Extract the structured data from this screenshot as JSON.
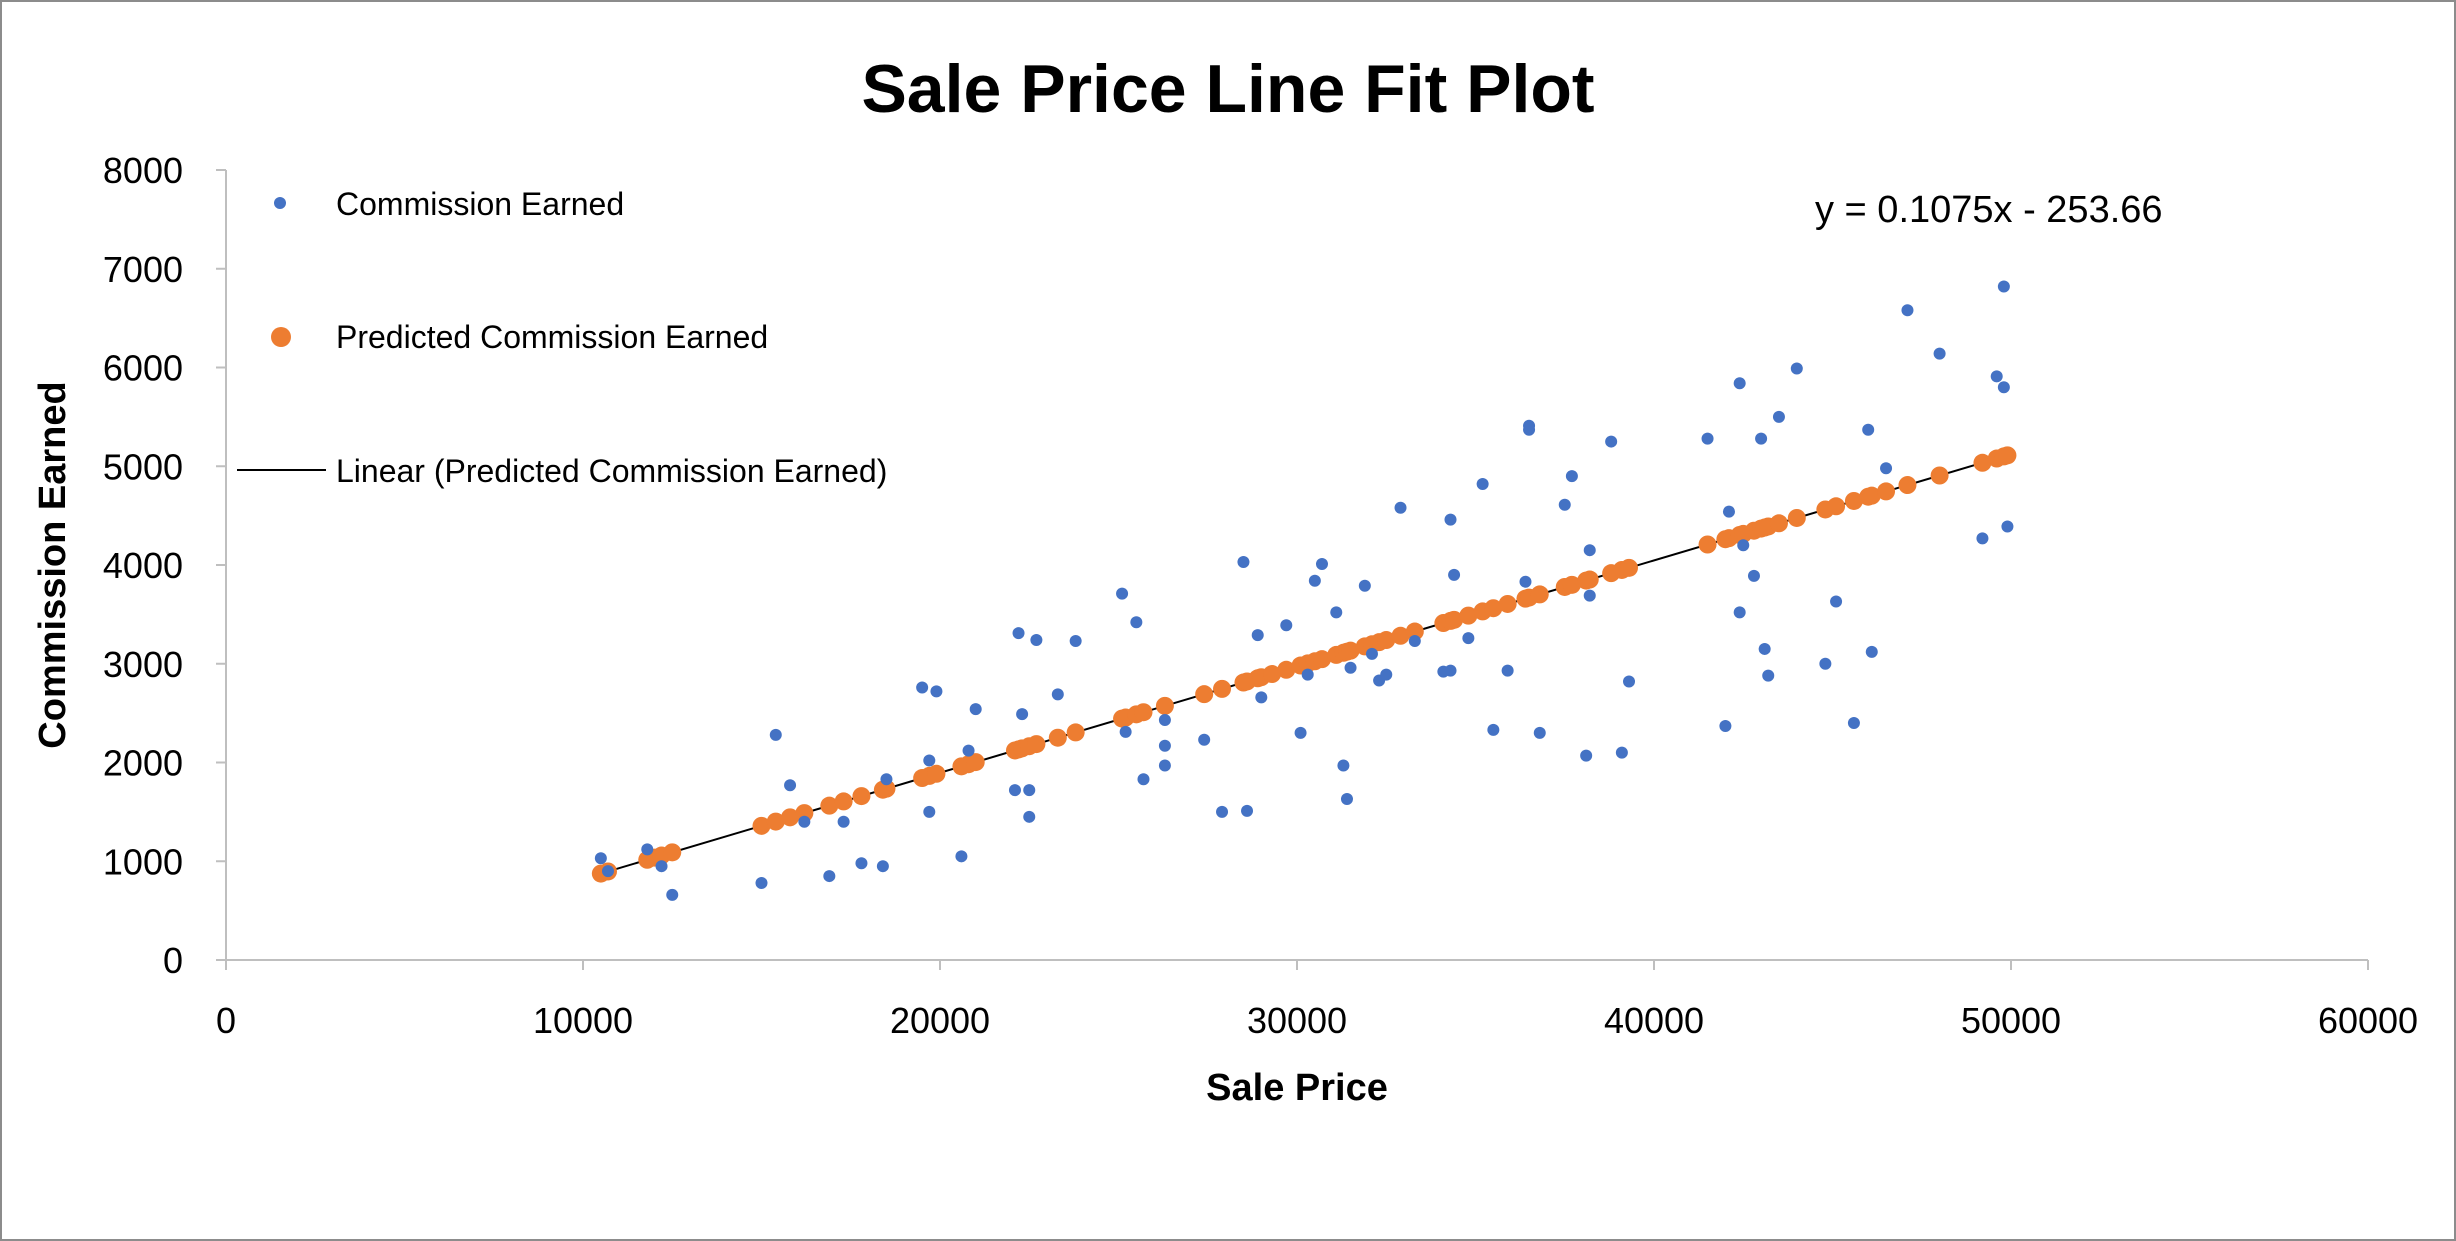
{
  "chart_data": {
    "type": "scatter",
    "title": "Sale Price Line Fit  Plot",
    "xlabel": "Sale Price",
    "ylabel": "Commission Earned",
    "xlim": [
      0,
      60000
    ],
    "ylim": [
      0,
      8000
    ],
    "x_ticks": [
      0,
      10000,
      20000,
      30000,
      40000,
      50000,
      60000
    ],
    "y_ticks": [
      0,
      1000,
      2000,
      3000,
      4000,
      5000,
      6000,
      7000,
      8000
    ],
    "grid": false,
    "legend_position": "top-left",
    "equation_label": "y = 0.1075x - 253.66",
    "colors": {
      "observed": "#4472C4",
      "predicted": "#ED7D31",
      "trendline": "#000000",
      "axis": "#bfbfbf"
    },
    "series": [
      {
        "name": "Commission Earned",
        "kind": "points",
        "x": [
          10500,
          10700,
          11800,
          12200,
          12500,
          15000,
          15400,
          15800,
          16200,
          16900,
          17300,
          17800,
          18400,
          18500,
          19500,
          19700,
          19700,
          19900,
          20600,
          20800,
          21000,
          22100,
          22200,
          22300,
          22500,
          22500,
          22700,
          23300,
          23800,
          25100,
          25200,
          25500,
          25700,
          26300,
          26300,
          26300,
          27400,
          27900,
          28500,
          28600,
          28900,
          29000,
          29700,
          30100,
          30300,
          30500,
          30700,
          31100,
          31300,
          31400,
          31500,
          31900,
          32100,
          32300,
          32500,
          32900,
          33300,
          34100,
          34300,
          34300,
          34400,
          34800,
          35200,
          35500,
          35900,
          36400,
          36500,
          36500,
          36800,
          37500,
          37700,
          38100,
          38200,
          38200,
          38800,
          39100,
          39300,
          41500,
          42000,
          42100,
          42400,
          42400,
          42500,
          42800,
          43000,
          43100,
          43200,
          43500,
          44000,
          44800,
          45100,
          45600,
          46000,
          46100,
          46500,
          47100,
          48000,
          49200,
          49600,
          49800,
          49800,
          49900
        ],
        "y": [
          1030,
          900,
          1120,
          950,
          660,
          780,
          2280,
          1770,
          1400,
          850,
          1400,
          980,
          950,
          1830,
          2760,
          2020,
          1500,
          2720,
          1050,
          2120,
          2540,
          1720,
          3310,
          2490,
          1450,
          1720,
          3240,
          2690,
          3230,
          3710,
          2310,
          3420,
          1830,
          1970,
          2170,
          2430,
          2230,
          1500,
          4030,
          1510,
          3290,
          2660,
          3390,
          2300,
          2890,
          3840,
          4010,
          3520,
          1970,
          1630,
          2960,
          3790,
          3100,
          2830,
          2890,
          4580,
          3230,
          2920,
          4460,
          2930,
          3900,
          3260,
          4820,
          2330,
          2930,
          3830,
          5410,
          5370,
          2300,
          4610,
          4900,
          2070,
          3690,
          4150,
          5250,
          2100,
          2820,
          5280,
          2370,
          4540,
          5840,
          3520,
          4200,
          3890,
          5280,
          3150,
          2880,
          5500,
          5990,
          3000,
          3630,
          2400,
          5370,
          3120,
          4980,
          6580,
          6140,
          4270,
          5910,
          6820,
          5800,
          4390
        ]
      },
      {
        "name": "Predicted Commission Earned",
        "kind": "points",
        "x": [
          10500,
          10700,
          11800,
          12000,
          12200,
          12500,
          15000,
          15400,
          15800,
          16200,
          16900,
          17300,
          17800,
          18400,
          18500,
          19500,
          19700,
          19900,
          20600,
          20800,
          21000,
          22100,
          22200,
          22300,
          22500,
          22700,
          23300,
          23800,
          25100,
          25200,
          25500,
          25700,
          26300,
          27400,
          27900,
          28500,
          28600,
          28900,
          29000,
          29300,
          29700,
          30100,
          30300,
          30500,
          30700,
          31100,
          31300,
          31400,
          31500,
          31900,
          32100,
          32300,
          32500,
          32900,
          33300,
          34100,
          34300,
          34400,
          34800,
          35200,
          35500,
          35900,
          36400,
          36500,
          36800,
          37500,
          37700,
          38100,
          38200,
          38800,
          39100,
          39300,
          41500,
          42000,
          42100,
          42400,
          42500,
          42800,
          43000,
          43100,
          43200,
          43500,
          44000,
          44800,
          45100,
          45600,
          46000,
          46100,
          46500,
          47100,
          48000,
          49200,
          49600,
          49800,
          49900
        ],
        "y_from_equation": true
      },
      {
        "name": "Linear (Predicted Commission Earned)",
        "kind": "line",
        "slope": 0.1075,
        "intercept": -253.66,
        "x_range": [
          10500,
          49900
        ]
      }
    ]
  }
}
